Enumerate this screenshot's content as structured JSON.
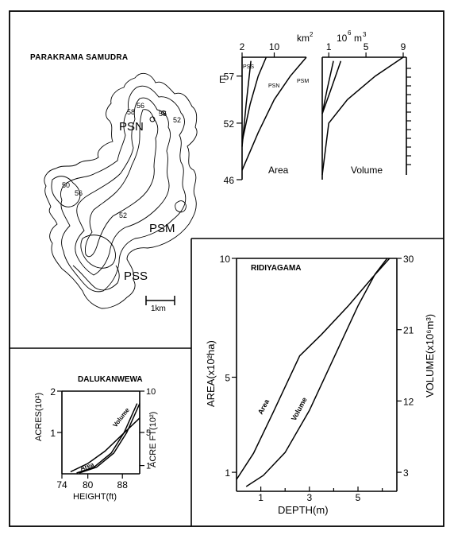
{
  "colors": {
    "ink": "#000000",
    "paper": "#ffffff"
  },
  "map": {
    "title": "PARAKRAMA SAMUDRA",
    "labels": [
      "PSN",
      "PSM",
      "PSS"
    ],
    "contour_labels": [
      "56",
      "58",
      "52",
      "50",
      "56",
      "52",
      "56"
    ],
    "scale_label": "1km"
  },
  "chart_data": [
    {
      "id": "parakrama-area",
      "type": "line",
      "title": "",
      "top_unit": "km",
      "top_unit_exp": "2",
      "panel_label": "Area",
      "y_unit": "E",
      "x_ticks": [
        "2",
        "10"
      ],
      "y_ticks": [
        "46",
        "52",
        "57"
      ],
      "xlim": [
        2,
        18
      ],
      "ylim": [
        46,
        59
      ],
      "series": [
        {
          "name": "PSS",
          "points": [
            [
              2,
              49.5
            ],
            [
              3,
              54
            ],
            [
              4.2,
              58.6
            ]
          ]
        },
        {
          "name": "PSN",
          "points": [
            [
              2,
              50
            ],
            [
              4,
              54
            ],
            [
              6,
              57
            ],
            [
              8,
              59
            ]
          ]
        },
        {
          "name": "PSM",
          "points": [
            [
              2,
              47
            ],
            [
              6,
              51
            ],
            [
              10,
              54.5
            ],
            [
              14,
              57
            ],
            [
              18,
              59
            ]
          ]
        }
      ]
    },
    {
      "id": "parakrama-volume",
      "type": "line",
      "title": "",
      "top_unit": "10",
      "top_unit_exp": "6",
      "top_unit_suffix": "m",
      "top_unit_suffix_exp": "3",
      "panel_label": "Volume",
      "x_ticks": [
        "1",
        "5",
        "9"
      ],
      "xlim": [
        0.3,
        9
      ],
      "ylim": [
        46,
        59
      ],
      "series": [
        {
          "name": "PSS",
          "points": [
            [
              0.3,
              53
            ],
            [
              0.8,
              55.5
            ],
            [
              1.5,
              58.6
            ]
          ]
        },
        {
          "name": "PSN",
          "points": [
            [
              0.3,
              53
            ],
            [
              1.2,
              55.5
            ],
            [
              2.3,
              58.6
            ]
          ]
        },
        {
          "name": "PSM",
          "points": [
            [
              0.3,
              46.5
            ],
            [
              1,
              52
            ],
            [
              3,
              54.5
            ],
            [
              6,
              57
            ],
            [
              9,
              59
            ]
          ]
        }
      ]
    },
    {
      "id": "dalukanwewa",
      "type": "line",
      "title": "DALUKANWEWA",
      "xlabel": "HEIGHT(ft)",
      "ylabel": "ACRES(10²)",
      "y2label": "ACRE FT(10²)",
      "x_ticks": [
        "74",
        "80",
        "88"
      ],
      "y_ticks": [
        "1",
        "2"
      ],
      "y2_ticks": [
        "1",
        "5",
        "10"
      ],
      "xlim": [
        74,
        92
      ],
      "ylim": [
        0,
        2
      ],
      "y2lim": [
        0,
        10
      ],
      "series": [
        {
          "name": "Area",
          "axis": "left",
          "label": "Area",
          "points": [
            [
              76,
              0.05
            ],
            [
              80,
              0.25
            ],
            [
              84,
              0.55
            ],
            [
              88,
              0.95
            ],
            [
              92,
              1.35
            ]
          ]
        },
        {
          "name": "Volume",
          "axis": "right",
          "label": "Volume",
          "points": [
            [
              78,
              0.1
            ],
            [
              82,
              0.8
            ],
            [
              86,
              2.5
            ],
            [
              89,
              5
            ],
            [
              92,
              8.5
            ]
          ]
        }
      ]
    },
    {
      "id": "ridiyagama",
      "type": "line",
      "title": "RIDIYAGAMA",
      "xlabel": "DEPTH(m)",
      "ylabel": "AREA(x10²ha)",
      "y2label": "VOLUME(x10⁶m³)",
      "x_ticks": [
        "1",
        "3",
        "5"
      ],
      "y_ticks": [
        "1",
        "5",
        "10"
      ],
      "y2_ticks": [
        "3",
        "12",
        "21",
        "30"
      ],
      "xlim": [
        0,
        6.6
      ],
      "ylim": [
        0.2,
        10
      ],
      "y2lim": [
        0.6,
        30
      ],
      "series": [
        {
          "name": "Area",
          "axis": "left",
          "label": "Area",
          "points": [
            [
              0,
              0.7
            ],
            [
              0.7,
              1.8
            ],
            [
              1.5,
              3.5
            ],
            [
              2.6,
              5.9
            ],
            [
              3.5,
              6.8
            ],
            [
              4.6,
              8
            ],
            [
              5.6,
              9.2
            ],
            [
              6.3,
              10
            ]
          ]
        },
        {
          "name": "Volume",
          "axis": "right",
          "label": "Volume",
          "points": [
            [
              0.4,
              1.2
            ],
            [
              1.1,
              2.6
            ],
            [
              2,
              5.5
            ],
            [
              3,
              10.8
            ],
            [
              4,
              17.4
            ],
            [
              5,
              24
            ],
            [
              5.7,
              28
            ],
            [
              6.2,
              30
            ]
          ]
        }
      ]
    }
  ]
}
